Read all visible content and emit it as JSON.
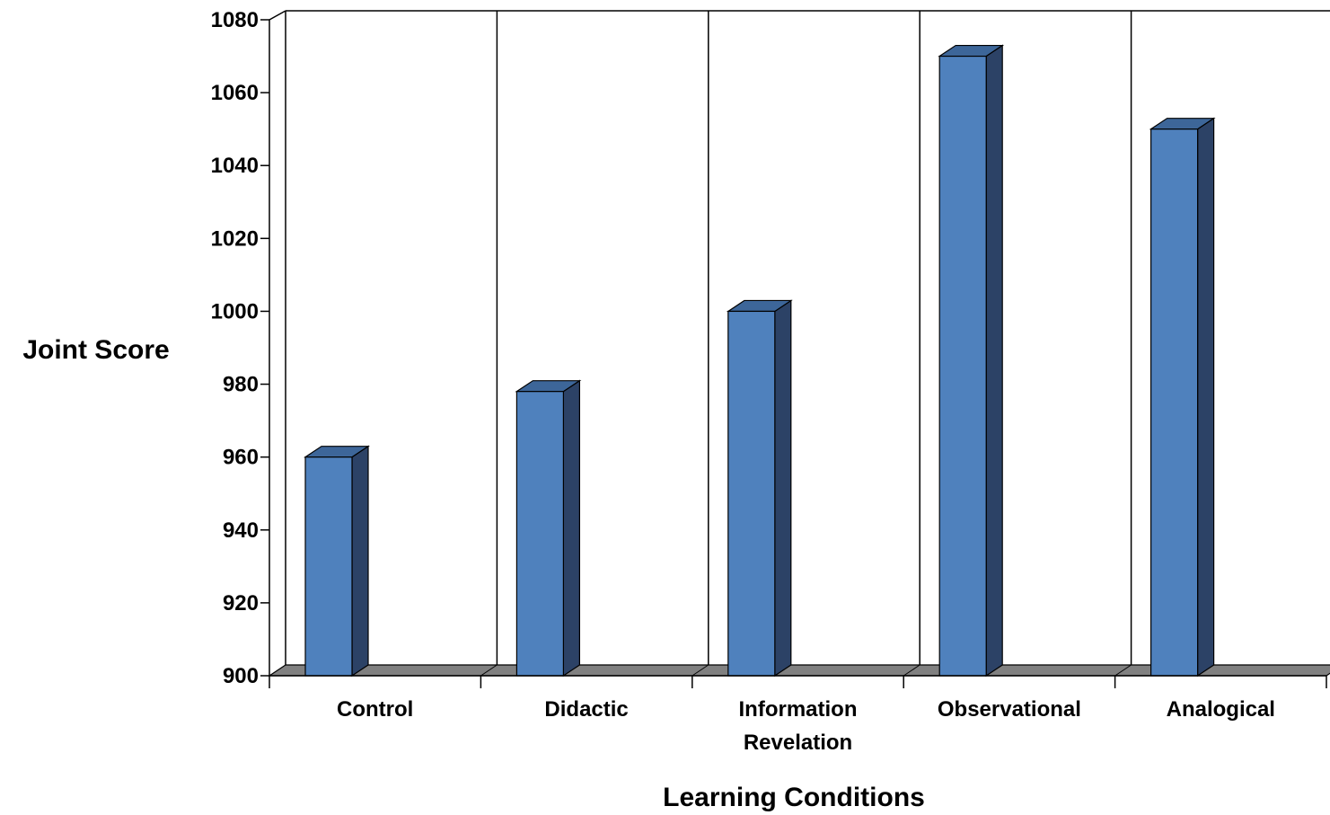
{
  "chart_data": {
    "type": "bar",
    "title": "",
    "xlabel": "Learning Conditions",
    "ylabel": "Joint Score",
    "categories": [
      [
        "Control"
      ],
      [
        "Didactic"
      ],
      [
        "Information",
        "Revelation"
      ],
      [
        "Observational"
      ],
      [
        "Analogical"
      ]
    ],
    "values": [
      960,
      978,
      1000,
      1070,
      1050
    ],
    "ylim": [
      900,
      1080
    ],
    "yticks": [
      900,
      920,
      940,
      960,
      980,
      1000,
      1020,
      1040,
      1060,
      1080
    ],
    "grid": "vertical lines between categories",
    "legend": "none",
    "colors": {
      "bar_front": "#4f81bd",
      "bar_side": "#2c4266",
      "bar_top": "#3d6699",
      "floor": "#808080"
    }
  }
}
